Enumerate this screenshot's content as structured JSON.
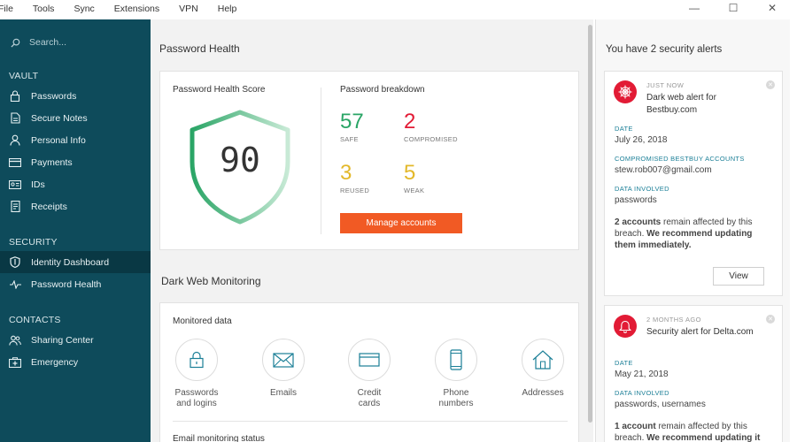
{
  "menu": [
    "File",
    "Tools",
    "Sync",
    "Extensions",
    "VPN",
    "Help"
  ],
  "window_controls": {
    "minimize": "—",
    "maximize": "☐",
    "close": "✕"
  },
  "sidebar": {
    "search_placeholder": "Search...",
    "vault_label": "VAULT",
    "vault_items": [
      {
        "label": "Passwords",
        "icon": "lock-icon"
      },
      {
        "label": "Secure Notes",
        "icon": "note-icon"
      },
      {
        "label": "Personal Info",
        "icon": "person-icon"
      },
      {
        "label": "Payments",
        "icon": "card-icon"
      },
      {
        "label": "IDs",
        "icon": "id-icon"
      },
      {
        "label": "Receipts",
        "icon": "receipt-icon"
      }
    ],
    "security_label": "SECURITY",
    "security_items": [
      {
        "label": "Identity Dashboard",
        "icon": "shield-icon",
        "active": true
      },
      {
        "label": "Password Health",
        "icon": "pulse-icon",
        "active": false
      }
    ],
    "contacts_label": "CONTACTS",
    "contacts_items": [
      {
        "label": "Sharing Center",
        "icon": "people-icon"
      },
      {
        "label": "Emergency",
        "icon": "emergency-icon"
      }
    ]
  },
  "main": {
    "title": "Password Health",
    "health": {
      "score_title": "Password Health Score",
      "score": "90",
      "breakdown_title": "Password breakdown",
      "stats": [
        {
          "value": "57",
          "label": "SAFE",
          "color": "#2aa566"
        },
        {
          "value": "2",
          "label": "COMPROMISED",
          "color": "#e21b35"
        },
        {
          "value": "3",
          "label": "REUSED",
          "color": "#e3b82a"
        },
        {
          "value": "5",
          "label": "WEAK",
          "color": "#e3b82a"
        }
      ],
      "manage_label": "Manage accounts"
    },
    "dark_web_title": "Dark Web Monitoring",
    "monitored": {
      "title": "Monitored data",
      "items": [
        {
          "label": "Passwords\nand logins",
          "icon": "lock-icon"
        },
        {
          "label": "Emails",
          "icon": "envelope-icon"
        },
        {
          "label": "Credit\ncards",
          "icon": "credit-card-icon"
        },
        {
          "label": "Phone\nnumbers",
          "icon": "phone-icon"
        },
        {
          "label": "Addresses",
          "icon": "house-icon"
        }
      ],
      "email_status": "Email monitoring status"
    }
  },
  "alerts": {
    "title": "You have 2 security alerts",
    "items": [
      {
        "when": "JUST NOW",
        "headline": "Dark web alert for Bestbuy.com",
        "date_label": "DATE",
        "date": "July 26, 2018",
        "accounts_label": "COMPROMISED BESTBUY ACCOUNTS",
        "account": "stew.rob007@gmail.com",
        "data_label": "DATA INVOLVED",
        "data": "passwords",
        "note_bold": "2 accounts",
        "note_rest": " remain affected by this breach. ",
        "note_bold2": "We recommend updating them immediately.",
        "view_label": "View"
      },
      {
        "when": "2 MONTHS AGO",
        "headline": "Security alert for Delta.com",
        "date_label": "DATE",
        "date": "May 21, 2018",
        "data_label": "DATA INVOLVED",
        "data": "passwords, usernames",
        "note_bold": "1 account",
        "note_rest": " remain affected by this breach. ",
        "note_bold2": "We recommend updating it"
      }
    ]
  },
  "colors": {
    "sidebar": "#0e4b5b",
    "sidebar_active": "#093844",
    "accent_orange": "#f15a24",
    "alert_red": "#e21b35",
    "label_teal": "#1b7f97"
  }
}
